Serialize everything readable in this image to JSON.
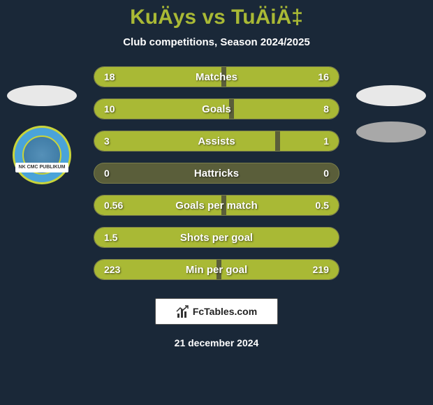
{
  "header": {
    "title": "KuÄys vs TuÄiÄ‡",
    "subtitle": "Club competitions, Season 2024/2025"
  },
  "team_badge": {
    "banner_text": "NK CMC PUBLIKUM",
    "outer_bg": "#4aa3d9",
    "border_color": "#c9d43a",
    "inner_bg": "#3875a0"
  },
  "stats": [
    {
      "label": "Matches",
      "left_val": "18",
      "right_val": "16",
      "left_pct": 52,
      "right_pct": 46
    },
    {
      "label": "Goals",
      "left_val": "10",
      "right_val": "8",
      "left_pct": 55,
      "right_pct": 43
    },
    {
      "label": "Assists",
      "left_val": "3",
      "right_val": "1",
      "left_pct": 74,
      "right_pct": 24
    },
    {
      "label": "Hattricks",
      "left_val": "0",
      "right_val": "0",
      "left_pct": 0,
      "right_pct": 0
    },
    {
      "label": "Goals per match",
      "left_val": "0.56",
      "right_val": "0.5",
      "left_pct": 52,
      "right_pct": 46
    },
    {
      "label": "Shots per goal",
      "left_val": "1.5",
      "right_val": "",
      "left_pct": 100,
      "right_pct": 0
    },
    {
      "label": "Min per goal",
      "left_val": "223",
      "right_val": "219",
      "left_pct": 50,
      "right_pct": 48
    }
  ],
  "colors": {
    "bar_fill": "#a9b935",
    "bar_bg": "#5a5e3a",
    "page_bg": "#1a2838",
    "title_color": "#a9b935",
    "text_color": "#ffffff"
  },
  "footer": {
    "site_label": "FcTables.com",
    "date": "21 december 2024"
  }
}
